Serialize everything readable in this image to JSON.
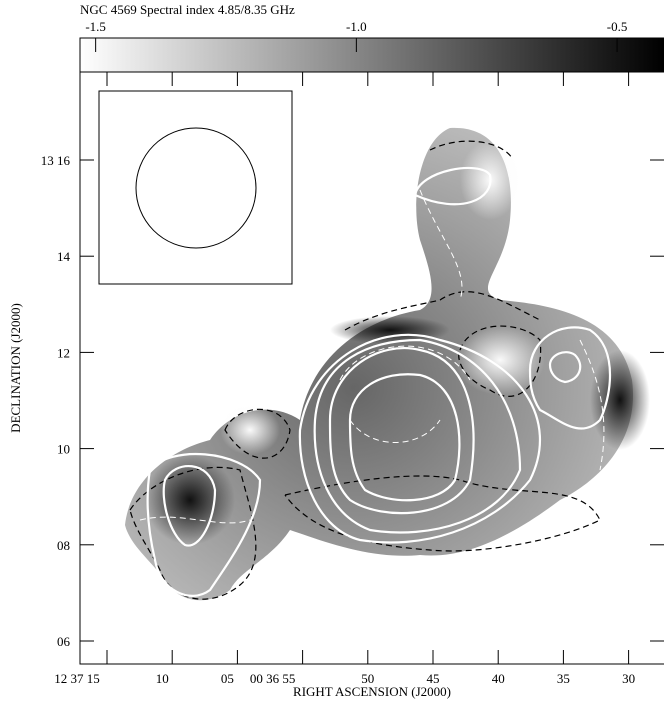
{
  "title": "NGC 4569 Spectral index 4.85/8.35 GHz",
  "colorbar": {
    "range": [
      -1.53,
      -0.41
    ],
    "ticks": [
      -1.5,
      {
        "value": -1,
        "label": "-1.0"
      },
      -0.5
    ]
  },
  "x_axis": {
    "label": "RIGHT ASCENSION (J2000)",
    "ticks": [
      "12 37 15",
      "10",
      "05",
      "00 36 55",
      "50",
      "45",
      "40",
      "35",
      "30"
    ]
  },
  "y_axis": {
    "label": "DECLINATION (J2000)",
    "ticks": [
      "13 16",
      "14",
      "12",
      "10",
      "08",
      "06"
    ]
  }
}
